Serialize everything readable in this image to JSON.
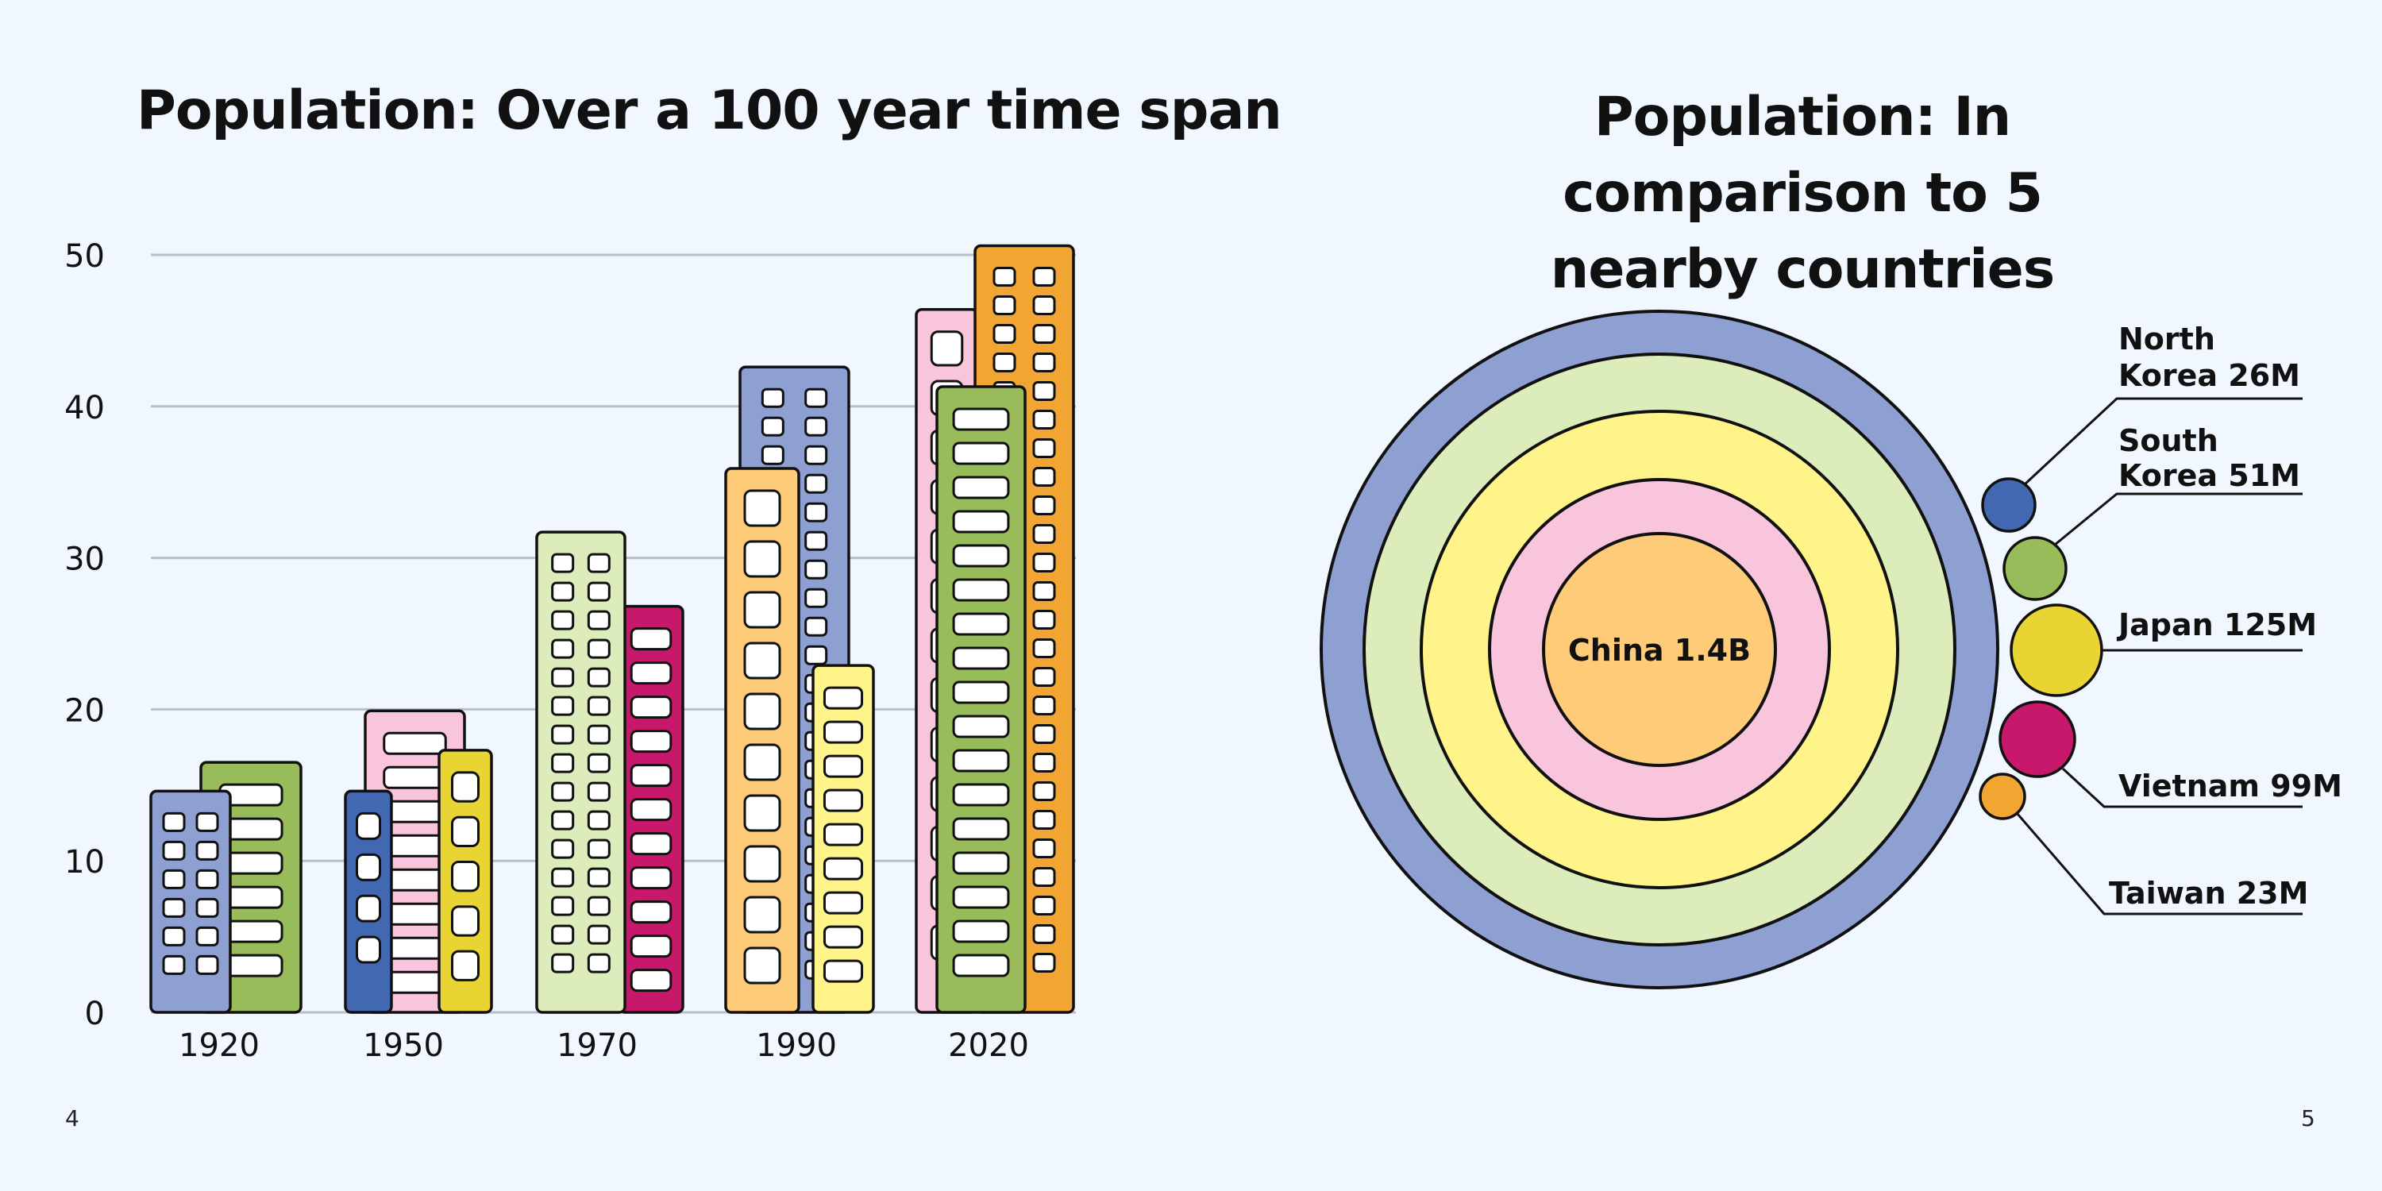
{
  "page": {
    "left_number": "4",
    "right_number": "5",
    "background": "#f1f7fe"
  },
  "chart_data": [
    {
      "type": "bar",
      "title": "Population: Over a 100 year time span",
      "xlabel": "",
      "ylabel": "",
      "ylim": [
        0,
        50
      ],
      "yticks": [
        "0",
        "10",
        "20",
        "30",
        "40",
        "50"
      ],
      "grid": true,
      "categories": [
        "1920",
        "1950",
        "1970",
        "1990",
        "2020"
      ],
      "series_style": "buildings",
      "groups": [
        {
          "category": "1920",
          "buildings": [
            {
              "value": 16.5,
              "color": "#97bc59",
              "window": "wide"
            },
            {
              "value": 14.6,
              "color": "#8e9fd2",
              "window": "grid"
            }
          ]
        },
        {
          "category": "1950",
          "buildings": [
            {
              "value": 19.9,
              "color": "#f9c5dd",
              "window": "wide"
            },
            {
              "value": 14.6,
              "color": "#4168b1",
              "window": "col"
            },
            {
              "value": 17.3,
              "color": "#e8d534",
              "window": "col"
            }
          ]
        },
        {
          "category": "1970",
          "buildings": [
            {
              "value": 26.8,
              "color": "#c8186c",
              "window": "wide"
            },
            {
              "value": 31.7,
              "color": "#dcecbb",
              "window": "grid"
            }
          ]
        },
        {
          "category": "1990",
          "buildings": [
            {
              "value": 42.6,
              "color": "#8e9fd2",
              "window": "grid"
            },
            {
              "value": 35.9,
              "color": "#fecc79",
              "window": "col"
            },
            {
              "value": 22.9,
              "color": "#fef489",
              "window": "wide"
            }
          ]
        },
        {
          "category": "2020",
          "buildings": [
            {
              "value": 46.4,
              "color": "#f9c5dd",
              "window": "col"
            },
            {
              "value": 50.6,
              "color": "#f2a532",
              "window": "grid"
            },
            {
              "value": 41.3,
              "color": "#97bc59",
              "window": "wide"
            }
          ]
        }
      ]
    },
    {
      "type": "pie",
      "title": "Population: In comparison to 5 nearby countries",
      "title_lines": [
        "Population: In comparison to 5",
        "nearby countries"
      ],
      "center_label": "China 1.4B",
      "rings": [
        "#8e9fd2",
        "#dcecbb",
        "#fef489",
        "#f9c5dd",
        "#fecc79"
      ],
      "countries": [
        {
          "label_lines": [
            "North",
            "Korea 26M"
          ],
          "value": 26,
          "color": "#4168b1"
        },
        {
          "label_lines": [
            "South",
            "Korea 51M"
          ],
          "value": 51,
          "color": "#97bc59"
        },
        {
          "label_lines": [
            "Japan 125M"
          ],
          "value": 125,
          "color": "#e8d534"
        },
        {
          "label_lines": [
            "Vietnam 99M"
          ],
          "value": 99,
          "color": "#c8186c"
        },
        {
          "label_lines": [
            "Taiwan 23M"
          ],
          "value": 23,
          "color": "#f2a532"
        }
      ]
    }
  ]
}
